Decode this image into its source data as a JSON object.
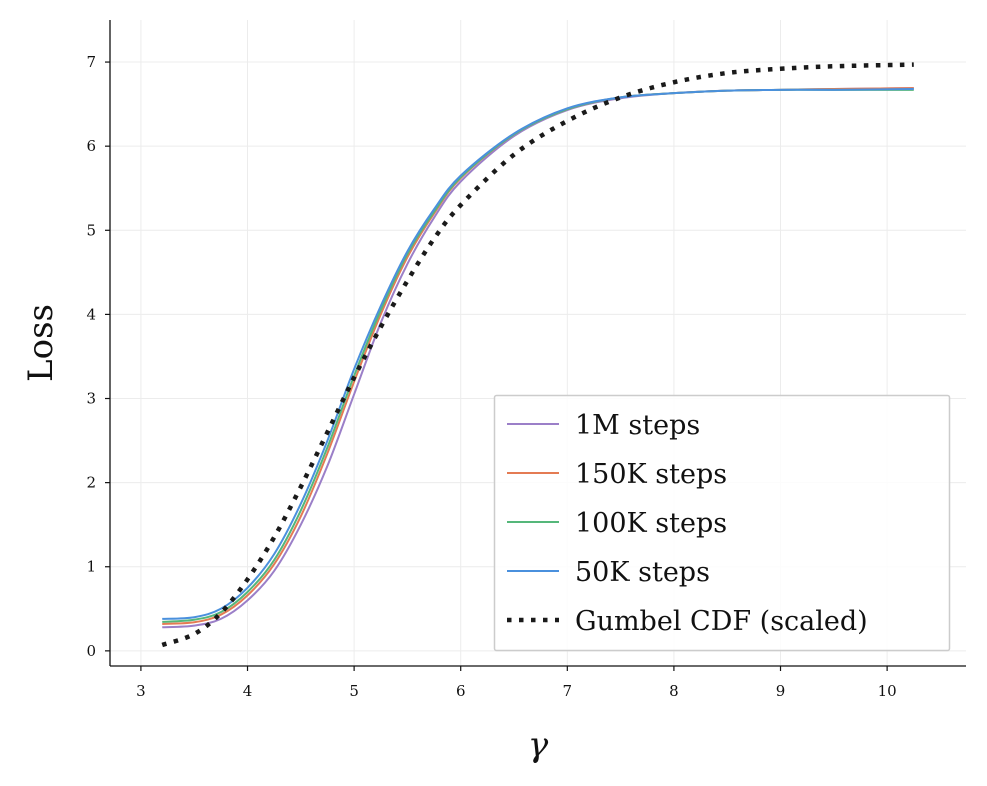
{
  "chart_data": {
    "type": "line",
    "title": "",
    "xlabel": "γ",
    "ylabel": "Loss",
    "xlim": [
      2.71,
      10.74
    ],
    "ylim": [
      -0.18,
      7.5
    ],
    "xticks": [
      3,
      4,
      5,
      6,
      7,
      8,
      9,
      10
    ],
    "yticks": [
      0,
      1,
      2,
      3,
      4,
      5,
      6,
      7
    ],
    "grid": true,
    "legend_position": "bottom-right",
    "x": [
      3.2,
      3.5,
      3.75,
      4,
      4.25,
      4.5,
      4.75,
      5,
      5.25,
      5.5,
      5.75,
      6,
      6.5,
      7,
      7.5,
      8,
      8.5,
      9,
      9.5,
      10.25
    ],
    "series": [
      {
        "name": "1M steps",
        "color": "#9b7fc8",
        "style": "solid",
        "values": [
          0.28,
          0.3,
          0.38,
          0.6,
          0.95,
          1.5,
          2.2,
          3.05,
          3.9,
          4.6,
          5.15,
          5.58,
          6.12,
          6.43,
          6.57,
          6.63,
          6.66,
          6.67,
          6.68,
          6.69
        ]
      },
      {
        "name": "150K steps",
        "color": "#e47b53",
        "style": "solid",
        "values": [
          0.32,
          0.34,
          0.43,
          0.66,
          1.03,
          1.6,
          2.35,
          3.2,
          4.0,
          4.68,
          5.2,
          5.62,
          6.14,
          6.44,
          6.58,
          6.63,
          6.66,
          6.67,
          6.68,
          6.69
        ]
      },
      {
        "name": "100K steps",
        "color": "#55b77a",
        "style": "solid",
        "values": [
          0.345,
          0.37,
          0.46,
          0.7,
          1.08,
          1.67,
          2.42,
          3.27,
          4.05,
          4.72,
          5.22,
          5.63,
          6.14,
          6.44,
          6.58,
          6.63,
          6.66,
          6.67,
          6.67,
          6.67
        ]
      },
      {
        "name": "50K steps",
        "color": "#4a90dd",
        "style": "solid",
        "values": [
          0.38,
          0.4,
          0.5,
          0.75,
          1.15,
          1.75,
          2.5,
          3.35,
          4.1,
          4.75,
          5.25,
          5.65,
          6.15,
          6.45,
          6.58,
          6.63,
          6.66,
          6.67,
          6.67,
          6.68
        ]
      },
      {
        "name": "Gumbel CDF (scaled)",
        "color": "#1a1a1a",
        "style": "dotted",
        "values": [
          0.07,
          0.2,
          0.45,
          0.85,
          1.35,
          1.95,
          2.6,
          3.25,
          3.85,
          4.4,
          4.9,
          5.3,
          5.9,
          6.3,
          6.58,
          6.76,
          6.87,
          6.92,
          6.95,
          6.97
        ]
      }
    ]
  }
}
